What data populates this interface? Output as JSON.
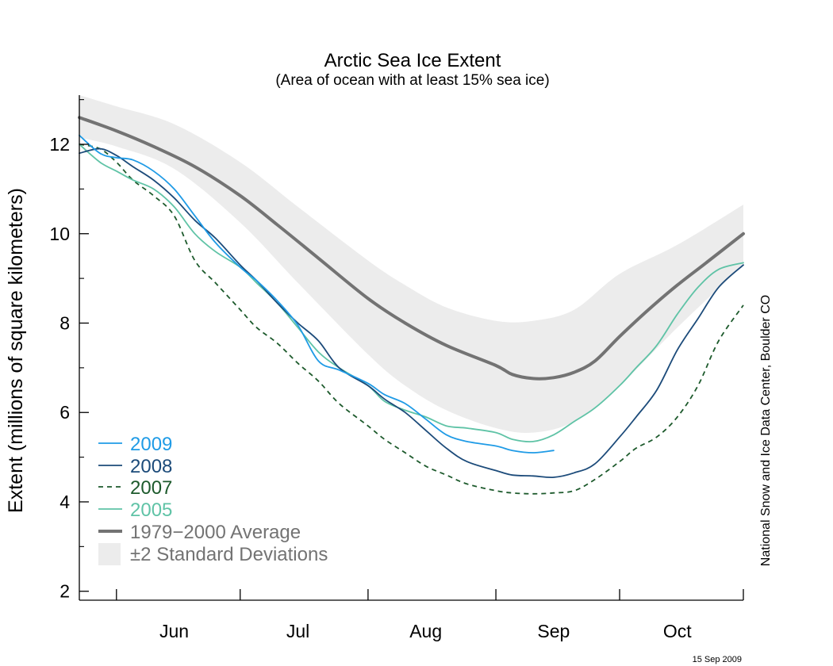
{
  "colors": {
    "y2009": "#1f9be6",
    "y2008": "#1c4b7a",
    "y2007": "#1d5a2c",
    "y2005": "#5fc3a6",
    "average": "#737373",
    "band": "#ececec"
  },
  "chart_data": {
    "type": "line",
    "title": "Arctic Sea Ice Extent",
    "subtitle": "(Area of ocean with at least 15% sea ice)",
    "ylabel": "Extent (millions of square kilometers)",
    "xlabel": "",
    "ylim": [
      1.8,
      13.1
    ],
    "xlim": [
      "2009-05-23",
      "2009-10-31"
    ],
    "yticks": [
      2,
      4,
      6,
      8,
      10,
      12
    ],
    "yminor_ticks": [
      3,
      5,
      7,
      9,
      11,
      13
    ],
    "xtick_labels": [
      "Jun",
      "Jul",
      "Aug",
      "Sep",
      "Oct"
    ],
    "xtick_label_dates": [
      "2009-06-15",
      "2009-07-15",
      "2009-08-15",
      "2009-09-15",
      "2009-10-15"
    ],
    "xtick_dates": [
      "2009-06-01",
      "2009-07-01",
      "2009-08-01",
      "2009-09-01",
      "2009-10-01",
      "2009-10-31"
    ],
    "grid": false,
    "legend_position": "bottom-left",
    "credit": "National Snow and Ice Data Center, Boulder CO",
    "date_stamp": "15 Sep 2009",
    "band": {
      "name": "±2 Standard Deviations",
      "x": [
        "2009-05-23",
        "2009-06-01",
        "2009-06-15",
        "2009-07-01",
        "2009-07-15",
        "2009-08-01",
        "2009-08-10",
        "2009-08-20",
        "2009-09-01",
        "2009-09-10",
        "2009-09-20",
        "2009-10-01",
        "2009-10-15",
        "2009-10-31"
      ],
      "upper": [
        13.1,
        12.85,
        12.45,
        11.6,
        10.6,
        9.4,
        8.85,
        8.35,
        8.05,
        8.05,
        8.3,
        9.1,
        9.75,
        10.65
      ],
      "lower": [
        12.15,
        11.95,
        11.45,
        10.25,
        8.9,
        7.3,
        6.6,
        6.05,
        5.65,
        5.55,
        5.8,
        6.6,
        7.9,
        9.3
      ]
    },
    "series": [
      {
        "name": "1979−2000 Average",
        "key": "average",
        "x": [
          "2009-05-23",
          "2009-06-01",
          "2009-06-10",
          "2009-06-20",
          "2009-07-01",
          "2009-07-10",
          "2009-07-20",
          "2009-08-01",
          "2009-08-10",
          "2009-08-20",
          "2009-09-01",
          "2009-09-05",
          "2009-09-10",
          "2009-09-15",
          "2009-09-20",
          "2009-09-25",
          "2009-10-01",
          "2009-10-08",
          "2009-10-15",
          "2009-10-22",
          "2009-10-31"
        ],
        "values": [
          12.6,
          12.3,
          11.95,
          11.5,
          10.85,
          10.2,
          9.45,
          8.55,
          8.0,
          7.5,
          7.05,
          6.85,
          6.76,
          6.78,
          6.9,
          7.15,
          7.7,
          8.3,
          8.85,
          9.35,
          10.0
        ]
      },
      {
        "name": "2009",
        "key": "y2009",
        "x": [
          "2009-05-23",
          "2009-05-28",
          "2009-06-01",
          "2009-06-05",
          "2009-06-10",
          "2009-06-15",
          "2009-06-20",
          "2009-06-25",
          "2009-07-01",
          "2009-07-05",
          "2009-07-10",
          "2009-07-15",
          "2009-07-20",
          "2009-07-25",
          "2009-08-01",
          "2009-08-05",
          "2009-08-10",
          "2009-08-15",
          "2009-08-20",
          "2009-08-25",
          "2009-09-01",
          "2009-09-05",
          "2009-09-10",
          "2009-09-15"
        ],
        "values": [
          12.2,
          11.8,
          11.7,
          11.65,
          11.4,
          11.0,
          10.4,
          9.8,
          9.25,
          8.95,
          8.5,
          7.95,
          7.15,
          6.95,
          6.65,
          6.4,
          6.2,
          5.85,
          5.5,
          5.35,
          5.25,
          5.15,
          5.1,
          5.15
        ]
      },
      {
        "name": "2008",
        "key": "y2008",
        "x": [
          "2009-05-23",
          "2009-05-28",
          "2009-06-01",
          "2009-06-05",
          "2009-06-10",
          "2009-06-15",
          "2009-06-20",
          "2009-06-25",
          "2009-07-01",
          "2009-07-05",
          "2009-07-10",
          "2009-07-15",
          "2009-07-20",
          "2009-07-25",
          "2009-08-01",
          "2009-08-05",
          "2009-08-10",
          "2009-08-15",
          "2009-08-20",
          "2009-08-25",
          "2009-09-01",
          "2009-09-05",
          "2009-09-10",
          "2009-09-15",
          "2009-09-20",
          "2009-09-25",
          "2009-10-01",
          "2009-10-05",
          "2009-10-10",
          "2009-10-15",
          "2009-10-20",
          "2009-10-25",
          "2009-10-31"
        ],
        "values": [
          11.8,
          11.9,
          11.75,
          11.5,
          11.2,
          10.8,
          10.3,
          9.9,
          9.3,
          8.95,
          8.45,
          8.0,
          7.6,
          7.0,
          6.6,
          6.3,
          6.0,
          5.6,
          5.2,
          4.9,
          4.7,
          4.6,
          4.58,
          4.55,
          4.65,
          4.85,
          5.45,
          5.9,
          6.5,
          7.4,
          8.1,
          8.8,
          9.3
        ]
      },
      {
        "name": "2007",
        "key": "y2007",
        "dashed": true,
        "x": [
          "2009-05-23",
          "2009-05-28",
          "2009-06-01",
          "2009-06-05",
          "2009-06-10",
          "2009-06-15",
          "2009-06-20",
          "2009-06-25",
          "2009-07-01",
          "2009-07-05",
          "2009-07-10",
          "2009-07-15",
          "2009-07-20",
          "2009-07-25",
          "2009-08-01",
          "2009-08-05",
          "2009-08-10",
          "2009-08-15",
          "2009-08-20",
          "2009-08-25",
          "2009-09-01",
          "2009-09-05",
          "2009-09-10",
          "2009-09-15",
          "2009-09-20",
          "2009-09-25",
          "2009-10-01",
          "2009-10-05",
          "2009-10-10",
          "2009-10-15",
          "2009-10-20",
          "2009-10-25",
          "2009-10-31"
        ],
        "values": [
          12.0,
          11.9,
          11.6,
          11.2,
          10.85,
          10.4,
          9.4,
          8.9,
          8.3,
          7.9,
          7.55,
          7.1,
          6.7,
          6.2,
          5.7,
          5.4,
          5.1,
          4.8,
          4.6,
          4.4,
          4.25,
          4.2,
          4.18,
          4.2,
          4.25,
          4.5,
          4.9,
          5.2,
          5.45,
          5.9,
          6.6,
          7.6,
          8.4
        ]
      },
      {
        "name": "2005",
        "key": "y2005",
        "x": [
          "2009-05-23",
          "2009-05-28",
          "2009-06-01",
          "2009-06-05",
          "2009-06-10",
          "2009-06-15",
          "2009-06-20",
          "2009-06-25",
          "2009-07-01",
          "2009-07-05",
          "2009-07-10",
          "2009-07-15",
          "2009-07-20",
          "2009-07-25",
          "2009-08-01",
          "2009-08-05",
          "2009-08-10",
          "2009-08-15",
          "2009-08-20",
          "2009-08-25",
          "2009-09-01",
          "2009-09-05",
          "2009-09-10",
          "2009-09-15",
          "2009-09-20",
          "2009-09-25",
          "2009-10-01",
          "2009-10-05",
          "2009-10-10",
          "2009-10-15",
          "2009-10-20",
          "2009-10-25",
          "2009-10-31"
        ],
        "values": [
          12.0,
          11.6,
          11.4,
          11.2,
          11.0,
          10.6,
          10.0,
          9.6,
          9.25,
          8.9,
          8.45,
          7.9,
          7.35,
          7.0,
          6.6,
          6.25,
          6.05,
          5.9,
          5.7,
          5.65,
          5.55,
          5.4,
          5.35,
          5.5,
          5.8,
          6.1,
          6.6,
          7.0,
          7.5,
          8.2,
          8.8,
          9.2,
          9.35
        ]
      }
    ],
    "legend": [
      {
        "label": "2009",
        "key": "y2009",
        "style": "solid"
      },
      {
        "label": "2008",
        "key": "y2008",
        "style": "solid"
      },
      {
        "label": "2007",
        "key": "y2007",
        "style": "dashed"
      },
      {
        "label": "2005",
        "key": "y2005",
        "style": "solid"
      },
      {
        "label": "1979−2000 Average",
        "key": "average",
        "style": "thick"
      },
      {
        "label": "±2 Standard Deviations",
        "key": "band",
        "style": "box"
      }
    ]
  }
}
